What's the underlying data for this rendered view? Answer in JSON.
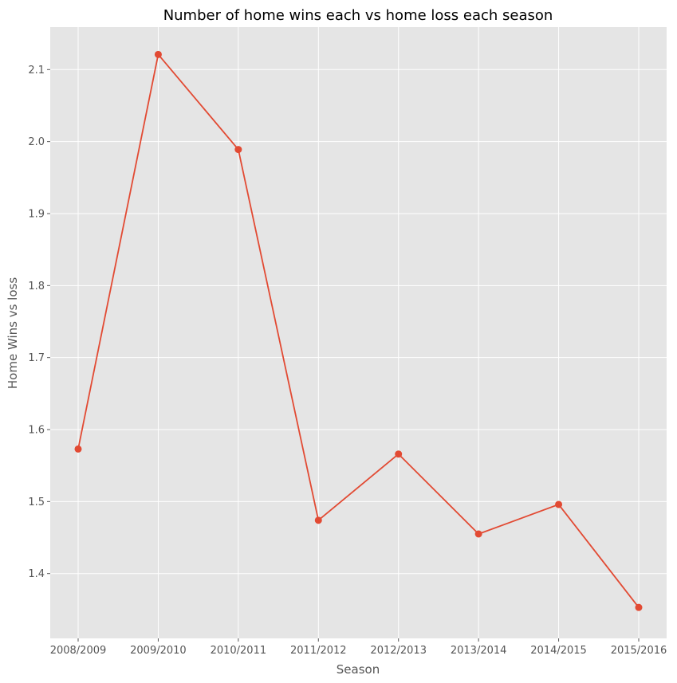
{
  "chart_data": {
    "type": "line",
    "title": "Number of home wins each vs home loss each season",
    "xlabel": "Season",
    "ylabel": "Home Wins vs loss",
    "categories": [
      "2008/2009",
      "2009/2010",
      "2010/2011",
      "2011/2012",
      "2012/2013",
      "2013/2014",
      "2014/2015",
      "2015/2016"
    ],
    "series": [
      {
        "values": [
          1.573,
          2.121,
          1.989,
          1.474,
          1.566,
          1.455,
          1.496,
          1.353
        ]
      }
    ],
    "ylim": [
      1.31,
      2.159
    ],
    "yticks": [
      1.4,
      1.5,
      1.6,
      1.7,
      1.8,
      1.9,
      2.0,
      2.1
    ],
    "ytick_labels": [
      "1.4",
      "1.5",
      "1.6",
      "1.7",
      "1.8",
      "1.9",
      "2.0",
      "2.1"
    ],
    "grid": true,
    "colors": {
      "line": "#E24A33",
      "background": "#E5E5E5",
      "grid": "#FFFFFF"
    }
  }
}
